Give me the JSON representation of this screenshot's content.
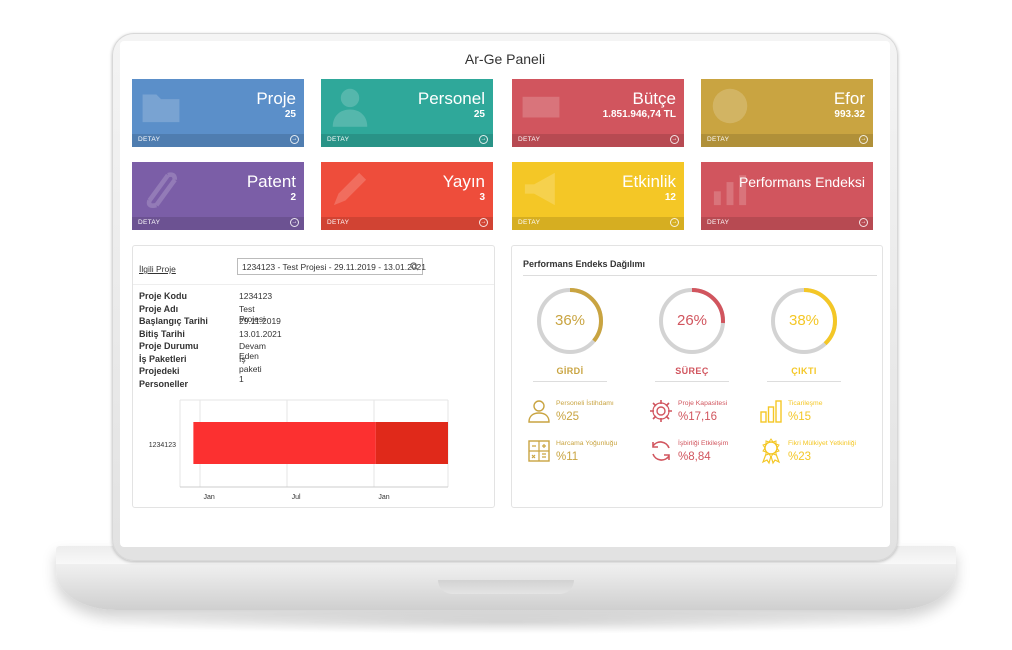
{
  "page_title": "Ar-Ge Paneli",
  "tiles": [
    {
      "title": "Proje",
      "value": "25",
      "footer": "DETAY",
      "color": "#5b8fc9",
      "icon": "folder-icon"
    },
    {
      "title": "Personel",
      "value": "25",
      "footer": "DETAY",
      "color": "#2fa89a",
      "icon": "user-icon"
    },
    {
      "title": "Bütçe",
      "value": "1.851.946,74 TL",
      "footer": "DETAY",
      "color": "#d1555e",
      "icon": "money-icon"
    },
    {
      "title": "Efor",
      "value": "993.32",
      "footer": "DETAY",
      "color": "#c9a441",
      "icon": "clock-icon"
    },
    {
      "title": "Patent",
      "value": "2",
      "footer": "DETAY",
      "color": "#7b5ea7",
      "icon": "paperclip-icon"
    },
    {
      "title": "Yayın",
      "value": "3",
      "footer": "DETAY",
      "color": "#ee4d3b",
      "icon": "pencil-icon"
    },
    {
      "title": "Etkinlik",
      "value": "12",
      "footer": "DETAY",
      "color": "#f4c726",
      "icon": "megaphone-icon"
    },
    {
      "title": "Performans Endeksi",
      "value": "",
      "footer": "DETAY",
      "color": "#d1555e",
      "icon": "chart-icon"
    }
  ],
  "project_panel": {
    "select_label": "İlgili Proje",
    "select_value": "1234123 - Test Projesi - 29.11.2019 - 13.01.2021",
    "fields": [
      {
        "key": "Proje Kodu",
        "value": "1234123"
      },
      {
        "key": "Proje Adı",
        "value": "Test Projesi"
      },
      {
        "key": "Başlangıç Tarihi",
        "value": "29.11.2019"
      },
      {
        "key": "Bitiş Tarihi",
        "value": "13.01.2021"
      },
      {
        "key": "Proje Durumu",
        "value": "Devam Eden"
      },
      {
        "key": "İş Paketleri",
        "value": "İş paketi 1"
      },
      {
        "key": "Projedeki",
        "value": ""
      },
      {
        "key": "Personeller",
        "value": ""
      }
    ]
  },
  "chart_data": {
    "type": "bar",
    "categories": [
      "1234123"
    ],
    "x_ticks": [
      "Jan",
      "Jul",
      "Jan"
    ],
    "series": [
      {
        "start": "2019-11-29",
        "end": "2020-12-15",
        "color": "#fc3030"
      },
      {
        "start": "2020-12-15",
        "end": "2021-05-15",
        "color": "#e0291a"
      }
    ],
    "title": "",
    "xlabel": "",
    "ylabel": ""
  },
  "performance": {
    "title": "Performans Endeks Dağılımı",
    "donuts": [
      {
        "label": "GİRDİ",
        "percent": 36,
        "pct_text": "36%",
        "color": "#c9a441"
      },
      {
        "label": "SÜREÇ",
        "percent": 26,
        "pct_text": "26%",
        "color": "#d1555e"
      },
      {
        "label": "ÇIKTI",
        "percent": 38,
        "pct_text": "38%",
        "color": "#f4c726"
      }
    ],
    "stats": [
      {
        "label": "Personeli İstihdamı",
        "value": "%25",
        "color": "#c9a441",
        "icon": "person-icon"
      },
      {
        "label": "Proje Kapasitesi",
        "value": "%17,16",
        "color": "#d1555e",
        "icon": "gear-icon"
      },
      {
        "label": "Ticarileşme",
        "value": "%15",
        "color": "#f4c726",
        "icon": "bar-chart-icon"
      },
      {
        "label": "Harcama Yoğunluğu",
        "value": "%11",
        "color": "#c9a441",
        "icon": "calculator-icon"
      },
      {
        "label": "İşbirliği Etkileşim",
        "value": "%8,84",
        "color": "#d1555e",
        "icon": "refresh-icon"
      },
      {
        "label": "Fikri Mülkiyet Yetkinliği",
        "value": "%23",
        "color": "#f4c726",
        "icon": "award-icon"
      }
    ]
  }
}
